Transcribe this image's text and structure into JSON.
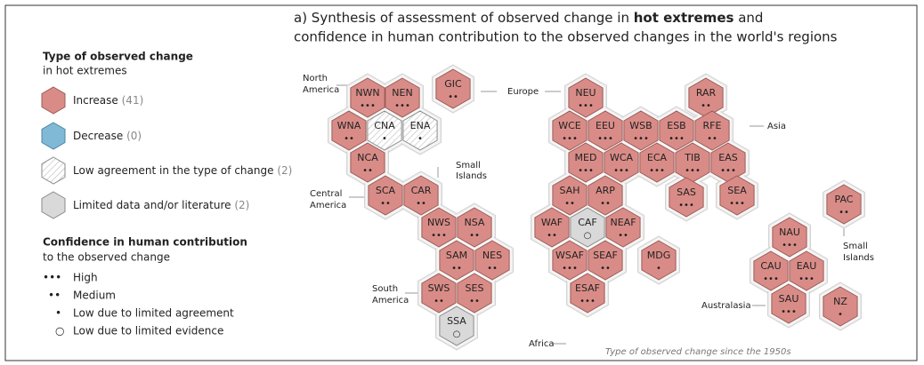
{
  "title_parts": [
    "a) Synthesis of assessment of observed change in ",
    "hot extremes",
    " and"
  ],
  "title_line2": "confidence in human contribution to the observed changes in the world's regions",
  "legend": {
    "type_heading": "Type of observed change",
    "type_subheading": "in hot extremes",
    "types": [
      {
        "label": "Increase",
        "count": "(41)",
        "fill": "#d98c87",
        "stroke": "#9c5b57"
      },
      {
        "label": "Decrease",
        "count": "(0)",
        "fill": "#7fb9d6",
        "stroke": "#4f86a3"
      },
      {
        "label": "Low agreement in the type of change",
        "count": "(2)",
        "fill": "#ffffff",
        "stroke": "#888888",
        "hatched": true
      },
      {
        "label": "Limited data and/or literature",
        "count": "(2)",
        "fill": "#d9d9d9",
        "stroke": "#8a8a8a"
      }
    ],
    "confidence_heading": "Confidence in human contribution",
    "confidence_subheading": "to the observed change",
    "confidence": [
      {
        "symbol": "•••",
        "label": "High"
      },
      {
        "symbol": "••",
        "label": "Medium"
      },
      {
        "symbol": "•",
        "label": "Low due to limited agreement"
      },
      {
        "symbol": "○",
        "label": "Low due to limited evidence"
      }
    ]
  },
  "group_labels": [
    "North",
    "America",
    "Europe",
    "Asia",
    "Small",
    "Islands",
    "Central",
    "America",
    "South",
    "America",
    "Africa",
    "Australasia",
    "Small",
    "Islands"
  ],
  "regions": [
    {
      "code": "NWN",
      "dots": "•••",
      "fill": "#d98c87"
    },
    {
      "code": "NEN",
      "dots": "•••",
      "fill": "#d98c87"
    },
    {
      "code": "GIC",
      "dots": "••",
      "fill": "#d98c87"
    },
    {
      "code": "WNA",
      "dots": "••",
      "fill": "#d98c87"
    },
    {
      "code": "CNA",
      "dots": "•",
      "fill": "#ffffff",
      "hatched": true
    },
    {
      "code": "ENA",
      "dots": "•",
      "fill": "#ffffff",
      "hatched": true
    },
    {
      "code": "NCA",
      "dots": "••",
      "fill": "#d98c87"
    },
    {
      "code": "SCA",
      "dots": "••",
      "fill": "#d98c87"
    },
    {
      "code": "CAR",
      "dots": "••",
      "fill": "#d98c87"
    },
    {
      "code": "NWS",
      "dots": "•••",
      "fill": "#d98c87"
    },
    {
      "code": "NSA",
      "dots": "••",
      "fill": "#d98c87"
    },
    {
      "code": "SAM",
      "dots": "••",
      "fill": "#d98c87"
    },
    {
      "code": "NES",
      "dots": "••",
      "fill": "#d98c87"
    },
    {
      "code": "SWS",
      "dots": "••",
      "fill": "#d98c87"
    },
    {
      "code": "SES",
      "dots": "••",
      "fill": "#d98c87"
    },
    {
      "code": "SSA",
      "dots": "○",
      "fill": "#d9d9d9"
    },
    {
      "code": "NEU",
      "dots": "•••",
      "fill": "#d98c87"
    },
    {
      "code": "RAR",
      "dots": "••",
      "fill": "#d98c87"
    },
    {
      "code": "WCE",
      "dots": "•••",
      "fill": "#d98c87"
    },
    {
      "code": "EEU",
      "dots": "•••",
      "fill": "#d98c87"
    },
    {
      "code": "WSB",
      "dots": "•••",
      "fill": "#d98c87"
    },
    {
      "code": "ESB",
      "dots": "•••",
      "fill": "#d98c87"
    },
    {
      "code": "RFE",
      "dots": "••",
      "fill": "#d98c87"
    },
    {
      "code": "MED",
      "dots": "•••",
      "fill": "#d98c87"
    },
    {
      "code": "WCA",
      "dots": "•••",
      "fill": "#d98c87"
    },
    {
      "code": "ECA",
      "dots": "•••",
      "fill": "#d98c87"
    },
    {
      "code": "TIB",
      "dots": "•••",
      "fill": "#d98c87"
    },
    {
      "code": "EAS",
      "dots": "•••",
      "fill": "#d98c87"
    },
    {
      "code": "SAH",
      "dots": "••",
      "fill": "#d98c87"
    },
    {
      "code": "ARP",
      "dots": "••",
      "fill": "#d98c87"
    },
    {
      "code": "SAS",
      "dots": "•••",
      "fill": "#d98c87"
    },
    {
      "code": "SEA",
      "dots": "•••",
      "fill": "#d98c87"
    },
    {
      "code": "WAF",
      "dots": "••",
      "fill": "#d98c87"
    },
    {
      "code": "CAF",
      "dots": "○",
      "fill": "#d9d9d9"
    },
    {
      "code": "NEAF",
      "dots": "••",
      "fill": "#d98c87"
    },
    {
      "code": "WSAF",
      "dots": "•••",
      "fill": "#d98c87"
    },
    {
      "code": "SEAF",
      "dots": "••",
      "fill": "#d98c87"
    },
    {
      "code": "MDG",
      "dots": "•",
      "fill": "#d98c87"
    },
    {
      "code": "ESAF",
      "dots": "•••",
      "fill": "#d98c87"
    },
    {
      "code": "PAC",
      "dots": "••",
      "fill": "#d98c87"
    },
    {
      "code": "NAU",
      "dots": "•••",
      "fill": "#d98c87"
    },
    {
      "code": "CAU",
      "dots": "•••",
      "fill": "#d98c87"
    },
    {
      "code": "EAU",
      "dots": "•••",
      "fill": "#d98c87"
    },
    {
      "code": "SAU",
      "dots": "•••",
      "fill": "#d98c87"
    },
    {
      "code": "NZ",
      "dots": "•",
      "fill": "#d98c87"
    }
  ],
  "footer": "Type of observed change since the 1950s"
}
